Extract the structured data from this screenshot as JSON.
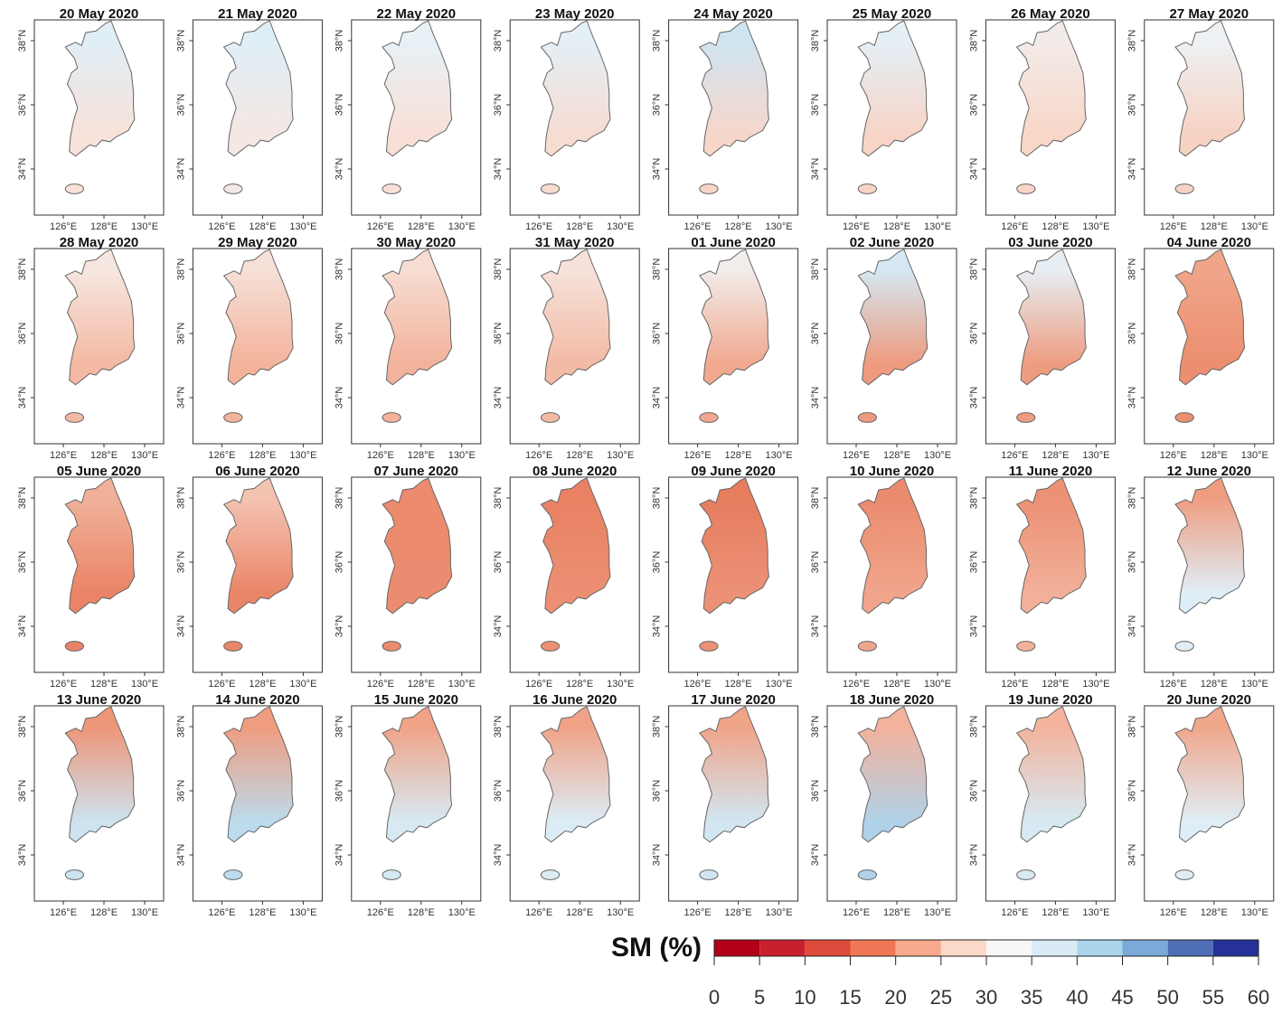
{
  "panels": [
    {
      "title": "20 May 2020",
      "map_colors": [
        "#e0eef6",
        "#f8e2da"
      ]
    },
    {
      "title": "21 May 2020",
      "map_colors": [
        "#dfeef6",
        "#f5e8e4"
      ]
    },
    {
      "title": "22 May 2020",
      "map_colors": [
        "#e8f1f6",
        "#f8e0d8"
      ]
    },
    {
      "title": "23 May 2020",
      "map_colors": [
        "#e4eff6",
        "#f7dcd2"
      ]
    },
    {
      "title": "24 May 2020",
      "map_colors": [
        "#cfe4f1",
        "#f7d6ca"
      ]
    },
    {
      "title": "25 May 2020",
      "map_colors": [
        "#e4eff6",
        "#f7d4c6"
      ]
    },
    {
      "title": "26 May 2020",
      "map_colors": [
        "#f3ebe9",
        "#f8d6c8"
      ]
    },
    {
      "title": "27 May 2020",
      "map_colors": [
        "#eef1f4",
        "#f7d2c2"
      ]
    },
    {
      "title": "28 May 2020",
      "map_colors": [
        "#f6e6e0",
        "#f4b9a3"
      ]
    },
    {
      "title": "29 May 2020",
      "map_colors": [
        "#f6e0d8",
        "#f3b39b"
      ]
    },
    {
      "title": "30 May 2020",
      "map_colors": [
        "#f6ddd2",
        "#f2b29b"
      ]
    },
    {
      "title": "31 May 2020",
      "map_colors": [
        "#f6e2da",
        "#f3baa5"
      ]
    },
    {
      "title": "01 June 2020",
      "map_colors": [
        "#f2ecea",
        "#f0a88e"
      ]
    },
    {
      "title": "02 June 2020",
      "map_colors": [
        "#d5e8f3",
        "#ee9a7e"
      ]
    },
    {
      "title": "03 June 2020",
      "map_colors": [
        "#e7eef3",
        "#ee9c80"
      ]
    },
    {
      "title": "04 June 2020",
      "map_colors": [
        "#f0a58a",
        "#ec8e70"
      ]
    },
    {
      "title": "05 June 2020",
      "map_colors": [
        "#f0b19a",
        "#ea8466"
      ]
    },
    {
      "title": "06 June 2020",
      "map_colors": [
        "#f3c3b1",
        "#ea8668"
      ]
    },
    {
      "title": "07 June 2020",
      "map_colors": [
        "#ec8b6e",
        "#eb8b6f"
      ]
    },
    {
      "title": "08 June 2020",
      "map_colors": [
        "#e98163",
        "#ec8f73"
      ]
    },
    {
      "title": "09 June 2020",
      "map_colors": [
        "#e67d5f",
        "#ec9176"
      ]
    },
    {
      "title": "10 June 2020",
      "map_colors": [
        "#eb8b6e",
        "#f0a58c"
      ]
    },
    {
      "title": "11 June 2020",
      "map_colors": [
        "#ec9175",
        "#f2b09a"
      ]
    },
    {
      "title": "12 June 2020",
      "map_colors": [
        "#ef9d81",
        "#dfeef6"
      ]
    },
    {
      "title": "13 June 2020",
      "map_colors": [
        "#ee9678",
        "#cde3f0"
      ]
    },
    {
      "title": "14 June 2020",
      "map_colors": [
        "#ef9c7f",
        "#bcdbec"
      ]
    },
    {
      "title": "15 June 2020",
      "map_colors": [
        "#f0a387",
        "#d7eaf3"
      ]
    },
    {
      "title": "16 June 2020",
      "map_colors": [
        "#f0a387",
        "#dcecf5"
      ]
    },
    {
      "title": "17 June 2020",
      "map_colors": [
        "#f0a488",
        "#d2e6f2"
      ]
    },
    {
      "title": "18 June 2020",
      "map_colors": [
        "#f3b29c",
        "#b0d2e8"
      ]
    },
    {
      "title": "19 June 2020",
      "map_colors": [
        "#f3b39c",
        "#d7eaf4"
      ]
    },
    {
      "title": "20 June 2020",
      "map_colors": [
        "#f1a78c",
        "#dfeef6"
      ]
    }
  ],
  "map_axes": {
    "xticks": [
      {
        "value": 126,
        "label": "126°E"
      },
      {
        "value": 128,
        "label": "128°E"
      },
      {
        "value": 130,
        "label": "130°E"
      }
    ],
    "yticks": [
      {
        "value": 38,
        "label": "38°N"
      },
      {
        "value": 36,
        "label": "36°N"
      },
      {
        "value": 34,
        "label": "34°N"
      }
    ]
  },
  "colorbar": {
    "title": "SM (%)",
    "ticks": [
      0,
      5,
      10,
      15,
      20,
      25,
      30,
      35,
      40,
      45,
      50,
      55,
      60
    ],
    "colors": [
      "#b2001a",
      "#c9202e",
      "#de4a3c",
      "#ef7755",
      "#f6a98c",
      "#fbd8c8",
      "#f7f7f7",
      "#d9ecf5",
      "#aad5ea",
      "#7ba9d8",
      "#4f6fb5",
      "#26309a"
    ]
  }
}
